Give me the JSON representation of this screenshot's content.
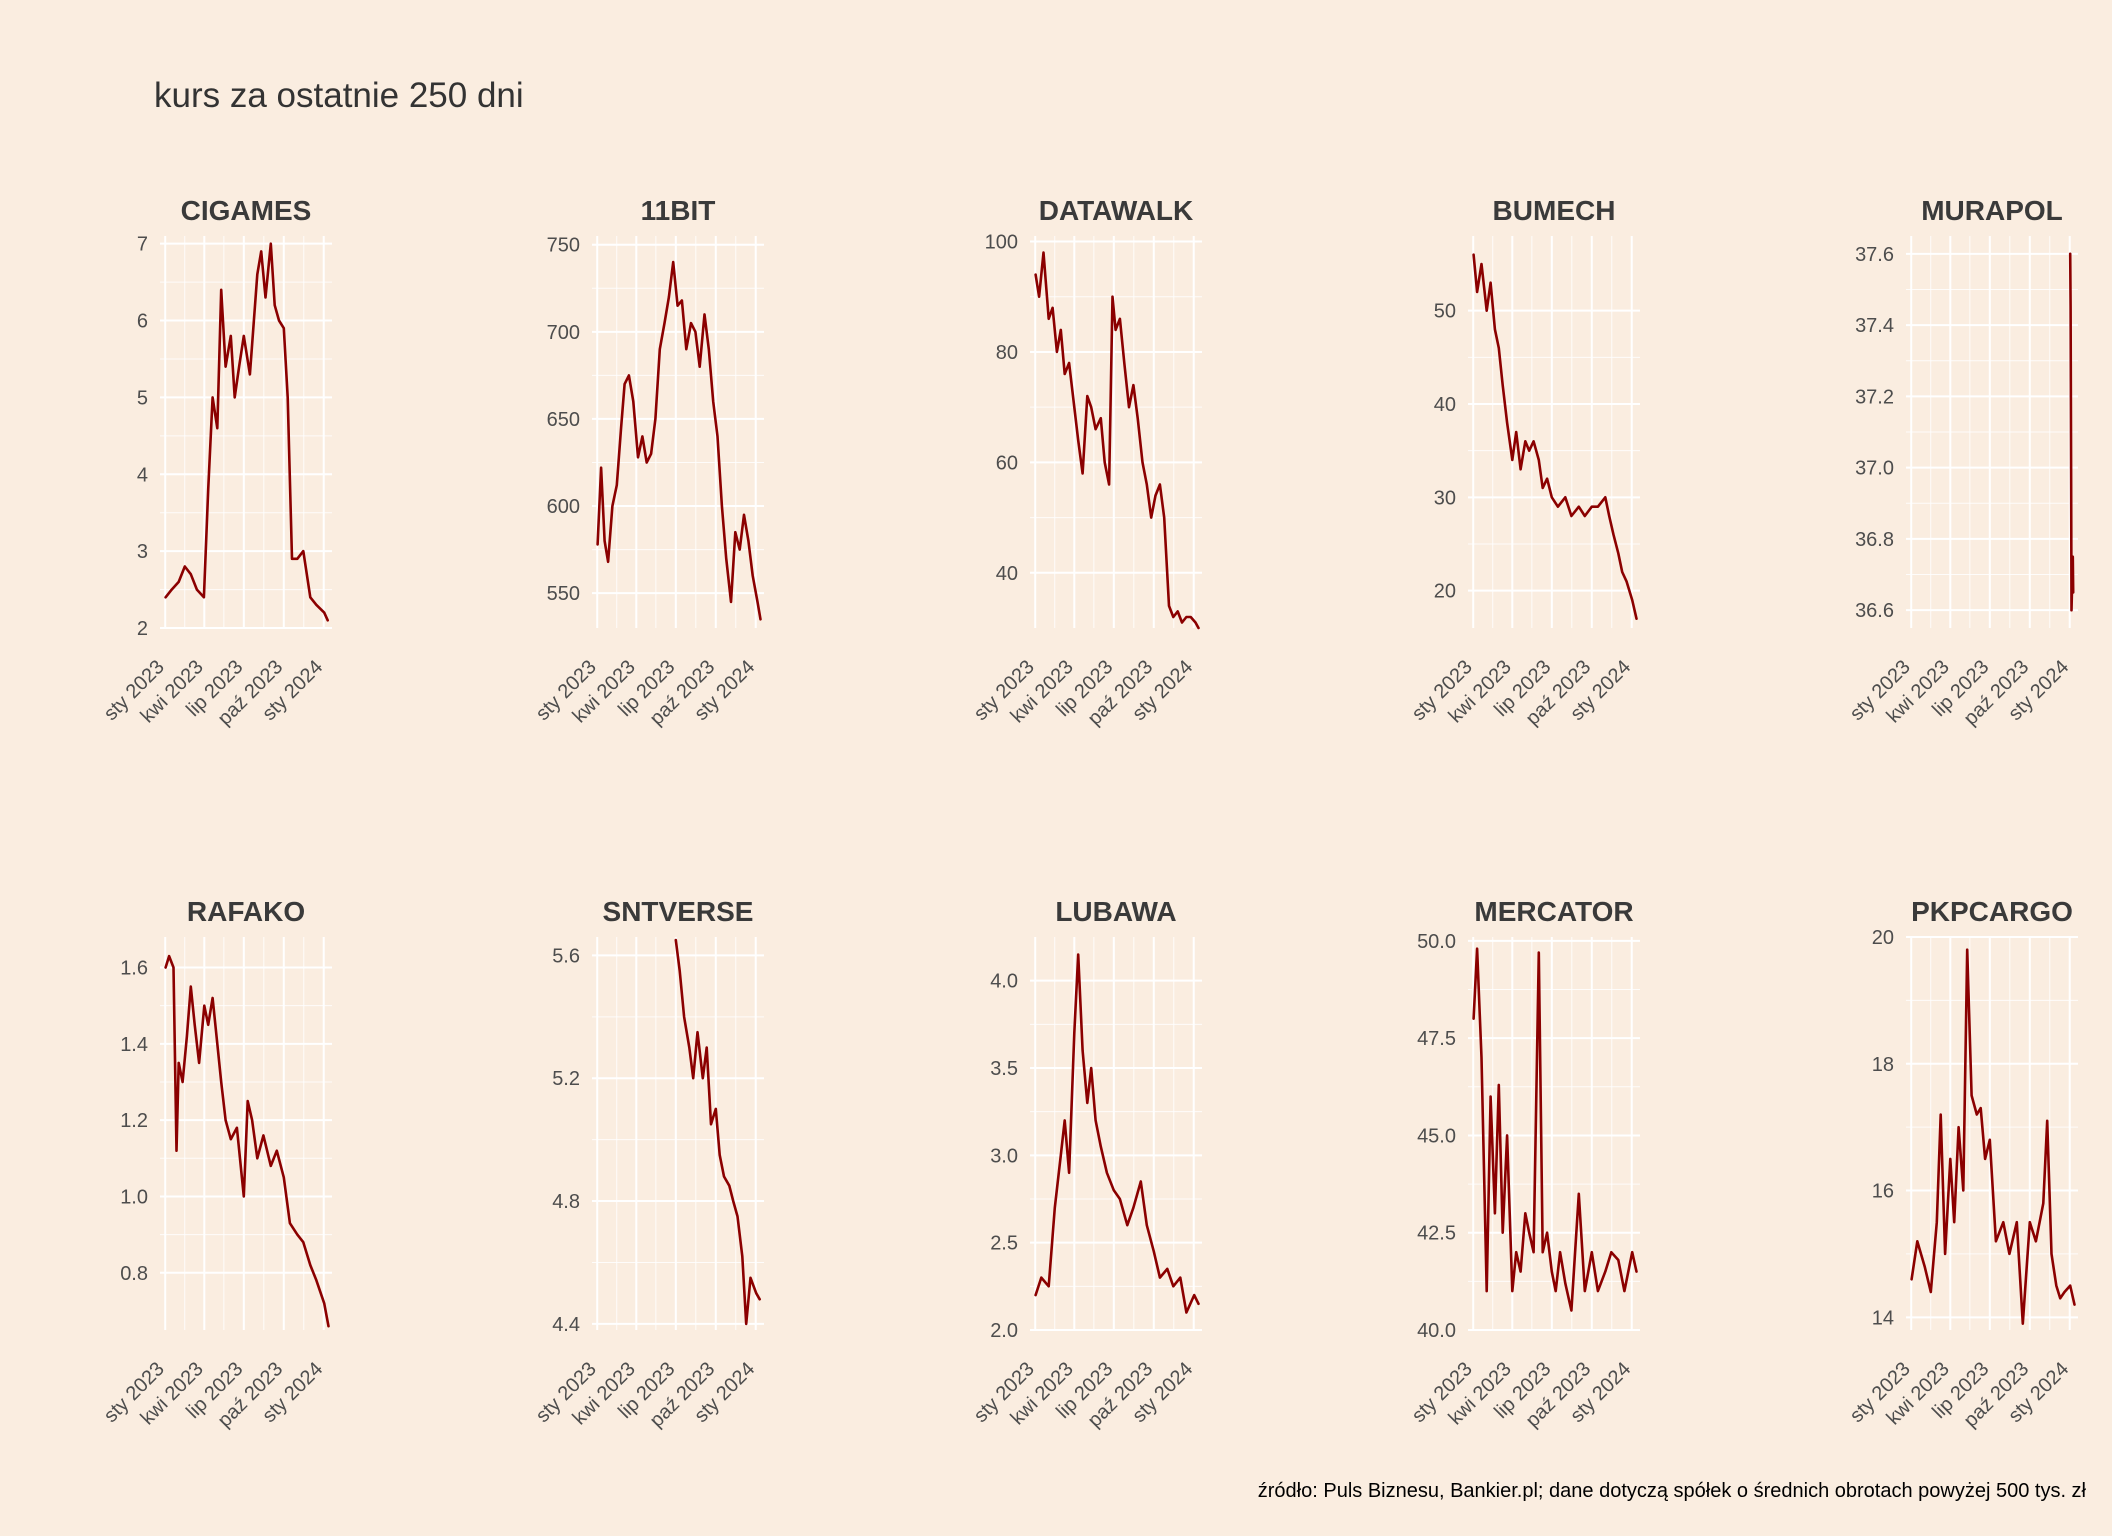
{
  "title": "kurs za ostatnie 250 dni",
  "caption": "źródło: Puls Biznesu, Bankier.pl; dane dotyczą spółek o średnich obrotach powyżej 500 tys. zł",
  "colors": {
    "background": "#FAEDE0",
    "grid": "#FFFFFF",
    "line": "#8B0000",
    "text": "#333333"
  },
  "chart_data": [
    {
      "type": "line",
      "title": "CIGAMES",
      "xlabel": "",
      "ylabel": "",
      "ylim": [
        2.0,
        7.1
      ],
      "x_ticks": [
        "sty 2023",
        "kwi 2023",
        "lip 2023",
        "paź 2023",
        "sty 2024"
      ],
      "y_ticks": [
        2,
        3,
        4,
        5,
        6,
        7
      ],
      "y_tick_labels": [
        "2",
        "3",
        "4",
        "5",
        "6",
        "7"
      ],
      "series": [
        {
          "x": [
            "2023-01-02",
            "2023-01-16",
            "2023-02-01",
            "2023-02-15",
            "2023-03-01",
            "2023-03-15",
            "2023-03-31",
            "2023-04-10",
            "2023-04-20",
            "2023-05-01",
            "2023-05-10",
            "2023-05-20",
            "2023-06-01",
            "2023-06-10",
            "2023-06-20",
            "2023-07-01",
            "2023-07-15",
            "2023-08-01",
            "2023-08-10",
            "2023-08-20",
            "2023-09-01",
            "2023-09-10",
            "2023-09-20",
            "2023-10-01",
            "2023-10-10",
            "2023-10-20",
            "2023-11-01",
            "2023-11-15",
            "2023-12-01",
            "2023-12-15",
            "2024-01-02",
            "2024-01-10"
          ],
          "values": [
            2.4,
            2.5,
            2.6,
            2.8,
            2.7,
            2.5,
            2.4,
            3.8,
            5.0,
            4.6,
            6.4,
            5.4,
            5.8,
            5.0,
            5.4,
            5.8,
            5.3,
            6.6,
            6.9,
            6.3,
            7.0,
            6.2,
            6.0,
            5.9,
            5.0,
            2.9,
            2.9,
            3.0,
            2.4,
            2.3,
            2.2,
            2.1
          ]
        }
      ]
    },
    {
      "type": "line",
      "title": "11BIT",
      "xlabel": "",
      "ylabel": "",
      "ylim": [
        530,
        755
      ],
      "x_ticks": [
        "sty 2023",
        "kwi 2023",
        "lip 2023",
        "paź 2023",
        "sty 2024"
      ],
      "y_ticks": [
        550,
        600,
        650,
        700,
        750
      ],
      "y_tick_labels": [
        "550",
        "600",
        "650",
        "700",
        "750"
      ],
      "series": [
        {
          "x": [
            "2023-01-02",
            "2023-01-10",
            "2023-01-18",
            "2023-01-26",
            "2023-02-05",
            "2023-02-15",
            "2023-02-25",
            "2023-03-05",
            "2023-03-15",
            "2023-03-25",
            "2023-04-05",
            "2023-04-15",
            "2023-04-25",
            "2023-05-05",
            "2023-05-15",
            "2023-05-25",
            "2023-06-05",
            "2023-06-15",
            "2023-06-25",
            "2023-07-05",
            "2023-07-15",
            "2023-07-25",
            "2023-08-05",
            "2023-08-15",
            "2023-08-25",
            "2023-09-05",
            "2023-09-15",
            "2023-09-25",
            "2023-10-05",
            "2023-10-15",
            "2023-10-25",
            "2023-11-05",
            "2023-11-15",
            "2023-11-25",
            "2023-12-05",
            "2023-12-15",
            "2023-12-25",
            "2024-01-05",
            "2024-01-12"
          ],
          "values": [
            578,
            622,
            580,
            568,
            600,
            612,
            645,
            670,
            675,
            660,
            628,
            640,
            625,
            630,
            650,
            690,
            705,
            720,
            740,
            715,
            718,
            690,
            705,
            700,
            680,
            710,
            690,
            660,
            640,
            600,
            570,
            545,
            585,
            575,
            595,
            580,
            560,
            545,
            535
          ]
        }
      ]
    },
    {
      "type": "line",
      "title": "DATAWALK",
      "xlabel": "",
      "ylabel": "",
      "ylim": [
        30,
        101
      ],
      "x_ticks": [
        "sty 2023",
        "kwi 2023",
        "lip 2023",
        "paź 2023",
        "sty 2024"
      ],
      "y_ticks": [
        40,
        60,
        80,
        100
      ],
      "y_tick_labels": [
        "40",
        "60",
        "80",
        "100"
      ],
      "series": [
        {
          "x": [
            "2023-01-02",
            "2023-01-10",
            "2023-01-20",
            "2023-02-01",
            "2023-02-10",
            "2023-02-20",
            "2023-03-01",
            "2023-03-10",
            "2023-03-20",
            "2023-04-01",
            "2023-04-10",
            "2023-04-20",
            "2023-05-01",
            "2023-05-10",
            "2023-05-20",
            "2023-06-01",
            "2023-06-10",
            "2023-06-20",
            "2023-06-28",
            "2023-07-05",
            "2023-07-15",
            "2023-07-25",
            "2023-08-05",
            "2023-08-15",
            "2023-08-25",
            "2023-09-05",
            "2023-09-15",
            "2023-09-25",
            "2023-10-05",
            "2023-10-15",
            "2023-10-25",
            "2023-11-05",
            "2023-11-15",
            "2023-11-25",
            "2023-12-05",
            "2023-12-15",
            "2023-12-25",
            "2024-01-05",
            "2024-01-12"
          ],
          "values": [
            94,
            90,
            98,
            86,
            88,
            80,
            84,
            76,
            78,
            70,
            64,
            58,
            72,
            70,
            66,
            68,
            60,
            56,
            90,
            84,
            86,
            78,
            70,
            74,
            68,
            60,
            56,
            50,
            54,
            56,
            50,
            34,
            32,
            33,
            31,
            32,
            32,
            31,
            30
          ]
        }
      ]
    },
    {
      "type": "line",
      "title": "BUMECH",
      "xlabel": "",
      "ylabel": "",
      "ylim": [
        16,
        58
      ],
      "x_ticks": [
        "sty 2023",
        "kwi 2023",
        "lip 2023",
        "paź 2023",
        "sty 2024"
      ],
      "y_ticks": [
        20,
        30,
        40,
        50
      ],
      "y_tick_labels": [
        "20",
        "30",
        "40",
        "50"
      ],
      "series": [
        {
          "x": [
            "2023-01-02",
            "2023-01-10",
            "2023-01-20",
            "2023-02-01",
            "2023-02-10",
            "2023-02-20",
            "2023-03-01",
            "2023-03-10",
            "2023-03-20",
            "2023-04-01",
            "2023-04-10",
            "2023-04-20",
            "2023-05-01",
            "2023-05-10",
            "2023-05-20",
            "2023-06-01",
            "2023-06-10",
            "2023-06-20",
            "2023-07-01",
            "2023-07-15",
            "2023-08-01",
            "2023-08-15",
            "2023-09-01",
            "2023-09-15",
            "2023-10-01",
            "2023-10-15",
            "2023-11-01",
            "2023-11-10",
            "2023-11-20",
            "2023-12-01",
            "2023-12-10",
            "2023-12-20",
            "2024-01-02",
            "2024-01-12"
          ],
          "values": [
            56,
            52,
            55,
            50,
            53,
            48,
            46,
            42,
            38,
            34,
            37,
            33,
            36,
            35,
            36,
            34,
            31,
            32,
            30,
            29,
            30,
            28,
            29,
            28,
            29,
            29,
            30,
            28,
            26,
            24,
            22,
            21,
            19,
            17
          ]
        }
      ]
    },
    {
      "type": "line",
      "title": "MURAPOL",
      "xlabel": "",
      "ylabel": "",
      "ylim": [
        36.55,
        37.65
      ],
      "x_ticks": [
        "sty 2023",
        "kwi 2023",
        "lip 2023",
        "paź 2023",
        "sty 2024"
      ],
      "y_ticks": [
        36.6,
        36.8,
        37.0,
        37.2,
        37.4,
        37.6
      ],
      "y_tick_labels": [
        "36.6",
        "36.8",
        "37.0",
        "37.2",
        "37.4",
        "37.6"
      ],
      "series": [
        {
          "x": [
            "2024-01-02",
            "2024-01-03",
            "2024-01-04",
            "2024-01-05",
            "2024-01-08",
            "2024-01-09"
          ],
          "values": [
            37.6,
            37.45,
            37.0,
            36.6,
            36.75,
            36.65
          ]
        }
      ]
    },
    {
      "type": "line",
      "title": "RAFAKO",
      "xlabel": "",
      "ylabel": "",
      "ylim": [
        0.65,
        1.68
      ],
      "x_ticks": [
        "sty 2023",
        "kwi 2023",
        "lip 2023",
        "paź 2023",
        "sty 2024"
      ],
      "y_ticks": [
        0.8,
        1.0,
        1.2,
        1.4,
        1.6
      ],
      "y_tick_labels": [
        "0.8",
        "1.0",
        "1.2",
        "1.4",
        "1.6"
      ],
      "series": [
        {
          "x": [
            "2023-01-02",
            "2023-01-10",
            "2023-01-20",
            "2023-01-27",
            "2023-02-01",
            "2023-02-10",
            "2023-02-20",
            "2023-03-01",
            "2023-03-10",
            "2023-03-20",
            "2023-04-01",
            "2023-04-10",
            "2023-04-20",
            "2023-05-01",
            "2023-05-10",
            "2023-05-20",
            "2023-06-01",
            "2023-06-15",
            "2023-07-01",
            "2023-07-10",
            "2023-07-20",
            "2023-08-01",
            "2023-08-15",
            "2023-09-01",
            "2023-09-15",
            "2023-10-01",
            "2023-10-15",
            "2023-11-01",
            "2023-11-15",
            "2023-12-01",
            "2023-12-15",
            "2024-01-02",
            "2024-01-12"
          ],
          "values": [
            1.6,
            1.63,
            1.6,
            1.12,
            1.35,
            1.3,
            1.42,
            1.55,
            1.45,
            1.35,
            1.5,
            1.45,
            1.52,
            1.4,
            1.3,
            1.2,
            1.15,
            1.18,
            1.0,
            1.25,
            1.2,
            1.1,
            1.16,
            1.08,
            1.12,
            1.05,
            0.93,
            0.9,
            0.88,
            0.82,
            0.78,
            0.72,
            0.66
          ]
        }
      ]
    },
    {
      "type": "line",
      "title": "SNTVERSE",
      "xlabel": "",
      "ylabel": "",
      "ylim": [
        4.38,
        5.66
      ],
      "x_ticks": [
        "sty 2023",
        "kwi 2023",
        "lip 2023",
        "paź 2023",
        "sty 2024"
      ],
      "y_ticks": [
        4.4,
        4.8,
        5.2,
        5.6
      ],
      "y_tick_labels": [
        "4.4",
        "4.8",
        "5.2",
        "5.6"
      ],
      "series": [
        {
          "x": [
            "2023-07-01",
            "2023-07-10",
            "2023-07-20",
            "2023-08-01",
            "2023-08-10",
            "2023-08-20",
            "2023-09-01",
            "2023-09-10",
            "2023-09-20",
            "2023-10-01",
            "2023-10-10",
            "2023-10-20",
            "2023-11-01",
            "2023-11-10",
            "2023-11-20",
            "2023-12-01",
            "2023-12-10",
            "2023-12-20",
            "2024-01-02",
            "2024-01-10"
          ],
          "values": [
            5.65,
            5.55,
            5.4,
            5.3,
            5.2,
            5.35,
            5.2,
            5.3,
            5.05,
            5.1,
            4.95,
            4.88,
            4.85,
            4.8,
            4.75,
            4.62,
            4.4,
            4.55,
            4.5,
            4.48
          ]
        }
      ]
    },
    {
      "type": "line",
      "title": "LUBAWA",
      "xlabel": "",
      "ylabel": "",
      "ylim": [
        2.0,
        4.25
      ],
      "x_ticks": [
        "sty 2023",
        "kwi 2023",
        "lip 2023",
        "paź 2023",
        "sty 2024"
      ],
      "y_ticks": [
        2.0,
        2.5,
        3.0,
        3.5,
        4.0
      ],
      "y_tick_labels": [
        "2.0",
        "2.5",
        "3.0",
        "3.5",
        "4.0"
      ],
      "series": [
        {
          "x": [
            "2023-01-02",
            "2023-01-15",
            "2023-02-01",
            "2023-02-15",
            "2023-03-01",
            "2023-03-10",
            "2023-03-20",
            "2023-04-01",
            "2023-04-10",
            "2023-04-20",
            "2023-05-01",
            "2023-05-10",
            "2023-05-20",
            "2023-06-01",
            "2023-06-15",
            "2023-07-01",
            "2023-07-15",
            "2023-08-01",
            "2023-08-15",
            "2023-09-01",
            "2023-09-15",
            "2023-10-01",
            "2023-10-15",
            "2023-11-01",
            "2023-11-15",
            "2023-12-01",
            "2023-12-15",
            "2024-01-02",
            "2024-01-12"
          ],
          "values": [
            2.2,
            2.3,
            2.25,
            2.7,
            3.0,
            3.2,
            2.9,
            3.7,
            4.15,
            3.6,
            3.3,
            3.5,
            3.2,
            3.05,
            2.9,
            2.8,
            2.75,
            2.6,
            2.7,
            2.85,
            2.6,
            2.45,
            2.3,
            2.35,
            2.25,
            2.3,
            2.1,
            2.2,
            2.15
          ]
        }
      ]
    },
    {
      "type": "line",
      "title": "MERCATOR",
      "xlabel": "",
      "ylabel": "",
      "ylim": [
        40.0,
        50.1
      ],
      "x_ticks": [
        "sty 2023",
        "kwi 2023",
        "lip 2023",
        "paź 2023",
        "sty 2024"
      ],
      "y_ticks": [
        40.0,
        42.5,
        45.0,
        47.5,
        50.0
      ],
      "y_tick_labels": [
        "40.0",
        "42.5",
        "45.0",
        "47.5",
        "50.0"
      ],
      "series": [
        {
          "x": [
            "2023-01-02",
            "2023-01-10",
            "2023-01-20",
            "2023-02-01",
            "2023-02-10",
            "2023-02-20",
            "2023-03-01",
            "2023-03-10",
            "2023-03-20",
            "2023-04-01",
            "2023-04-10",
            "2023-04-20",
            "2023-05-01",
            "2023-05-10",
            "2023-05-20",
            "2023-06-01",
            "2023-06-10",
            "2023-06-20",
            "2023-07-01",
            "2023-07-10",
            "2023-07-20",
            "2023-08-01",
            "2023-08-15",
            "2023-09-01",
            "2023-09-15",
            "2023-10-01",
            "2023-10-15",
            "2023-11-01",
            "2023-11-15",
            "2023-12-01",
            "2023-12-15",
            "2024-01-02",
            "2024-01-12"
          ],
          "values": [
            48,
            49.8,
            47,
            41,
            46,
            43,
            46.3,
            42.5,
            45,
            41,
            42,
            41.5,
            43,
            42.5,
            42,
            49.7,
            42,
            42.5,
            41.5,
            41,
            42,
            41.2,
            40.5,
            43.5,
            41,
            42,
            41,
            41.5,
            42,
            41.8,
            41,
            42,
            41.5
          ]
        }
      ]
    },
    {
      "type": "line",
      "title": "PKPCARGO",
      "xlabel": "",
      "ylabel": "",
      "ylim": [
        13.8,
        20.0
      ],
      "x_ticks": [
        "sty 2023",
        "kwi 2023",
        "lip 2023",
        "paź 2023",
        "sty 2024"
      ],
      "y_ticks": [
        14,
        16,
        18,
        20
      ],
      "y_tick_labels": [
        "14",
        "16",
        "18",
        "20"
      ],
      "series": [
        {
          "x": [
            "2023-01-02",
            "2023-01-15",
            "2023-02-01",
            "2023-02-15",
            "2023-03-01",
            "2023-03-10",
            "2023-03-20",
            "2023-04-01",
            "2023-04-10",
            "2023-04-20",
            "2023-05-01",
            "2023-05-10",
            "2023-05-20",
            "2023-06-01",
            "2023-06-10",
            "2023-06-20",
            "2023-07-01",
            "2023-07-15",
            "2023-08-01",
            "2023-08-15",
            "2023-09-01",
            "2023-09-15",
            "2023-10-01",
            "2023-10-15",
            "2023-11-01",
            "2023-11-10",
            "2023-11-20",
            "2023-12-01",
            "2023-12-10",
            "2023-12-20",
            "2024-01-02",
            "2024-01-12"
          ],
          "values": [
            14.6,
            15.2,
            14.8,
            14.4,
            15.5,
            17.2,
            15.0,
            16.5,
            15.5,
            17.0,
            16.0,
            19.8,
            17.5,
            17.2,
            17.3,
            16.5,
            16.8,
            15.2,
            15.5,
            15.0,
            15.5,
            13.9,
            15.5,
            15.2,
            15.8,
            17.1,
            15.0,
            14.5,
            14.3,
            14.4,
            14.5,
            14.2
          ]
        }
      ]
    }
  ]
}
